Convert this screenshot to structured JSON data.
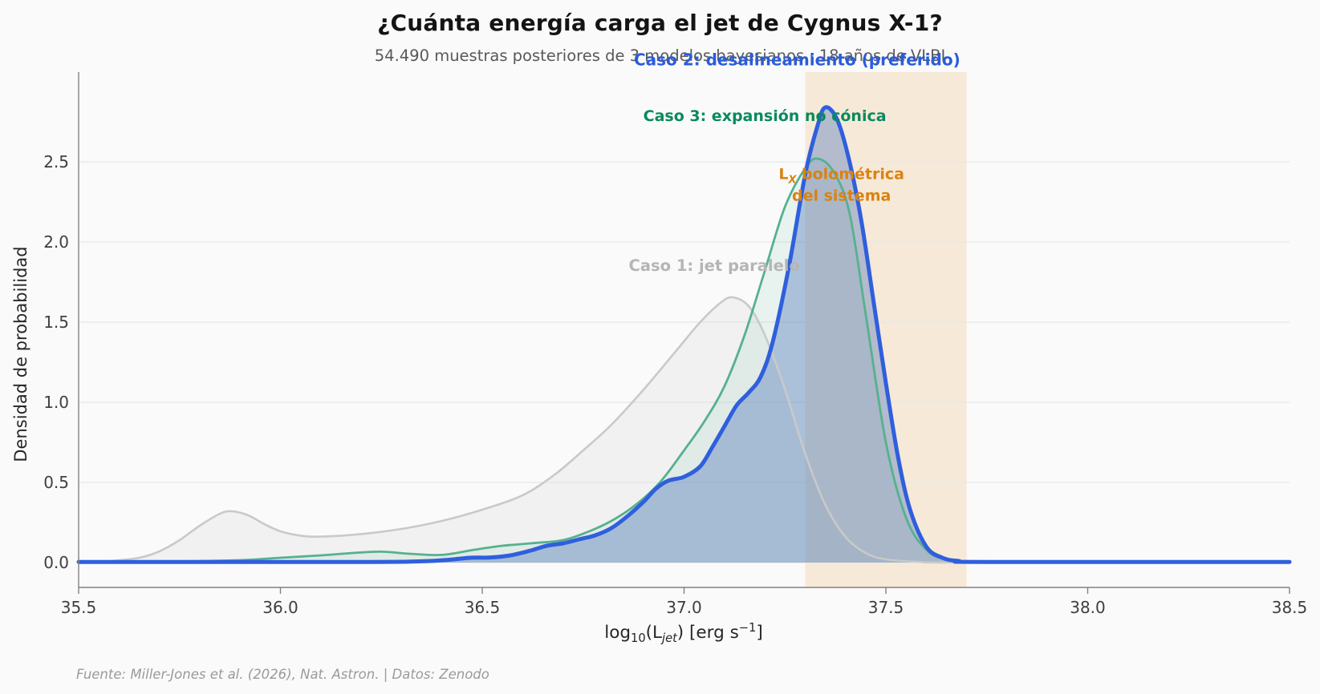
{
  "header": {
    "title": "¿Cuánta energía carga el jet de Cygnus X-1?",
    "subtitle": "54.490 muestras posteriores de 3 modelos bayesianos · 18 años de VLBI"
  },
  "footer": {
    "source": "Fuente: Miller-Jones et al. (2026), Nat. Astron. | Datos: Zenodo"
  },
  "axis": {
    "xlabel_parts": {
      "p1": "log",
      "sub1": "10",
      "p2": "(L",
      "sub2": "jet",
      "p3": ") [erg s",
      "sup1": "−1",
      "p4": "]"
    },
    "ylabel": "Densidad de probabilidad"
  },
  "chart_data": {
    "type": "area",
    "title": "¿Cuánta energía carga el jet de Cygnus X-1?",
    "subtitle": "54.490 muestras posteriores de 3 modelos bayesianos · 18 años de VLBI",
    "xlabel": "log10(L_jet) [erg s^-1]",
    "ylabel": "Densidad de probabilidad",
    "xlim": [
      35.5,
      38.5
    ],
    "ylim": [
      -0.155,
      3.06
    ],
    "grid": "horizontal-only",
    "legend": "none (direct curve labels)",
    "xtick_values": [
      35.5,
      36.0,
      36.5,
      37.0,
      37.5,
      38.0,
      38.5
    ],
    "xtick_labels": [
      "35.5",
      "36.0",
      "36.5",
      "37.0",
      "37.5",
      "38.0",
      "38.5"
    ],
    "ytick_values": [
      0.0,
      0.5,
      1.0,
      1.5,
      2.0,
      2.5
    ],
    "ytick_labels": [
      "0.0",
      "0.5",
      "1.0",
      "1.5",
      "2.0",
      "2.5"
    ],
    "band": {
      "label": "L_X bolométrica del sistema",
      "x0": 37.3,
      "x1": 37.7,
      "color": "rgba(229,152,44,0.16)",
      "label_color": "#dc820f"
    },
    "series": [
      {
        "name": "Caso 1: jet paralelo",
        "color": "#c9c9c9",
        "fill": "rgba(185,185,185,0.13)",
        "line_width": 2.6,
        "peak": {
          "x": 37.11,
          "y": 1.66
        },
        "points": [
          [
            35.5,
            0.0
          ],
          [
            35.58,
            0.01
          ],
          [
            35.65,
            0.03
          ],
          [
            35.7,
            0.07
          ],
          [
            35.75,
            0.14
          ],
          [
            35.8,
            0.23
          ],
          [
            35.85,
            0.305
          ],
          [
            35.88,
            0.32
          ],
          [
            35.92,
            0.295
          ],
          [
            35.96,
            0.24
          ],
          [
            36.0,
            0.195
          ],
          [
            36.05,
            0.168
          ],
          [
            36.1,
            0.162
          ],
          [
            36.2,
            0.178
          ],
          [
            36.3,
            0.21
          ],
          [
            36.4,
            0.26
          ],
          [
            36.5,
            0.33
          ],
          [
            36.6,
            0.42
          ],
          [
            36.68,
            0.55
          ],
          [
            36.75,
            0.7
          ],
          [
            36.82,
            0.86
          ],
          [
            36.9,
            1.08
          ],
          [
            36.98,
            1.32
          ],
          [
            37.04,
            1.5
          ],
          [
            37.09,
            1.62
          ],
          [
            37.12,
            1.655
          ],
          [
            37.16,
            1.6
          ],
          [
            37.2,
            1.42
          ],
          [
            37.25,
            1.08
          ],
          [
            37.3,
            0.68
          ],
          [
            37.35,
            0.36
          ],
          [
            37.4,
            0.16
          ],
          [
            37.45,
            0.06
          ],
          [
            37.5,
            0.02
          ],
          [
            37.58,
            0.005
          ],
          [
            37.7,
            0.0
          ],
          [
            38.5,
            0.0
          ]
        ]
      },
      {
        "name": "Caso 3: expansión no cónica",
        "color": "#55b18e",
        "fill": "rgba(110,190,155,0.12)",
        "line_width": 2.8,
        "peak": {
          "x": 37.33,
          "y": 2.52
        },
        "points": [
          [
            35.5,
            0.0
          ],
          [
            35.7,
            0.005
          ],
          [
            35.9,
            0.015
          ],
          [
            36.0,
            0.03
          ],
          [
            36.1,
            0.045
          ],
          [
            36.18,
            0.06
          ],
          [
            36.25,
            0.068
          ],
          [
            36.32,
            0.055
          ],
          [
            36.4,
            0.048
          ],
          [
            36.48,
            0.08
          ],
          [
            36.55,
            0.105
          ],
          [
            36.62,
            0.12
          ],
          [
            36.7,
            0.14
          ],
          [
            36.76,
            0.19
          ],
          [
            36.82,
            0.26
          ],
          [
            36.88,
            0.36
          ],
          [
            36.94,
            0.5
          ],
          [
            37.0,
            0.7
          ],
          [
            37.05,
            0.88
          ],
          [
            37.1,
            1.1
          ],
          [
            37.15,
            1.42
          ],
          [
            37.2,
            1.82
          ],
          [
            37.25,
            2.22
          ],
          [
            37.3,
            2.46
          ],
          [
            37.33,
            2.52
          ],
          [
            37.37,
            2.44
          ],
          [
            37.41,
            2.18
          ],
          [
            37.45,
            1.55
          ],
          [
            37.5,
            0.75
          ],
          [
            37.55,
            0.28
          ],
          [
            37.6,
            0.08
          ],
          [
            37.65,
            0.02
          ],
          [
            37.72,
            0.004
          ],
          [
            37.85,
            0.0
          ],
          [
            38.5,
            0.0
          ]
        ]
      },
      {
        "name": "Caso 2: desalineamiento (preferido)",
        "color": "#2f5fdd",
        "fill": "rgba(72,114,186,0.38)",
        "line_width": 5,
        "peak": {
          "x": 37.34,
          "y": 2.84
        },
        "points": [
          [
            35.5,
            0.004
          ],
          [
            36.2,
            0.004
          ],
          [
            36.35,
            0.008
          ],
          [
            36.42,
            0.018
          ],
          [
            36.47,
            0.03
          ],
          [
            36.52,
            0.032
          ],
          [
            36.57,
            0.045
          ],
          [
            36.62,
            0.075
          ],
          [
            36.66,
            0.105
          ],
          [
            36.7,
            0.12
          ],
          [
            36.74,
            0.145
          ],
          [
            36.78,
            0.17
          ],
          [
            36.82,
            0.215
          ],
          [
            36.86,
            0.29
          ],
          [
            36.9,
            0.38
          ],
          [
            36.93,
            0.46
          ],
          [
            36.96,
            0.51
          ],
          [
            37.0,
            0.535
          ],
          [
            37.04,
            0.6
          ],
          [
            37.07,
            0.72
          ],
          [
            37.1,
            0.85
          ],
          [
            37.13,
            0.98
          ],
          [
            37.16,
            1.06
          ],
          [
            37.19,
            1.16
          ],
          [
            37.22,
            1.38
          ],
          [
            37.26,
            1.85
          ],
          [
            37.3,
            2.42
          ],
          [
            37.33,
            2.72
          ],
          [
            37.35,
            2.84
          ],
          [
            37.38,
            2.76
          ],
          [
            37.41,
            2.5
          ],
          [
            37.44,
            2.12
          ],
          [
            37.47,
            1.62
          ],
          [
            37.5,
            1.12
          ],
          [
            37.53,
            0.66
          ],
          [
            37.56,
            0.33
          ],
          [
            37.6,
            0.1
          ],
          [
            37.64,
            0.03
          ],
          [
            37.68,
            0.01
          ],
          [
            37.75,
            0.004
          ],
          [
            38.5,
            0.004
          ]
        ]
      }
    ],
    "annotations": [
      {
        "id": "label-caso-2",
        "color": "#2a5cdb",
        "size": 20,
        "x": 37.28,
        "y": 3.135,
        "lines": [
          [
            {
              "t": "Caso 2: desalineamiento (preferido)"
            }
          ]
        ]
      },
      {
        "id": "label-caso-3",
        "color": "#0a8a5c",
        "size": 19,
        "x": 37.2,
        "y": 2.78,
        "lines": [
          [
            {
              "t": "Caso 3: expansión no cónica"
            }
          ]
        ]
      },
      {
        "id": "label-lx-band",
        "color": "#dc820f",
        "size": 19,
        "x": 37.39,
        "y": 2.35,
        "lines": [
          [
            {
              "t": "L"
            },
            {
              "t": "X",
              "sub": true
            },
            {
              "t": " bolométrica"
            }
          ],
          [
            {
              "t": "del sistema"
            }
          ]
        ]
      },
      {
        "id": "label-caso-1",
        "color": "#b5b5b5",
        "size": 19.5,
        "x": 37.075,
        "y": 1.85,
        "lines": [
          [
            {
              "t": "Caso 1: jet paralelo"
            }
          ]
        ]
      }
    ],
    "style": {
      "grid_color": "#e8e8e8",
      "spine_color": "#828282",
      "tick_label_color": "#3f3f3f",
      "background": "#fafafa"
    }
  }
}
